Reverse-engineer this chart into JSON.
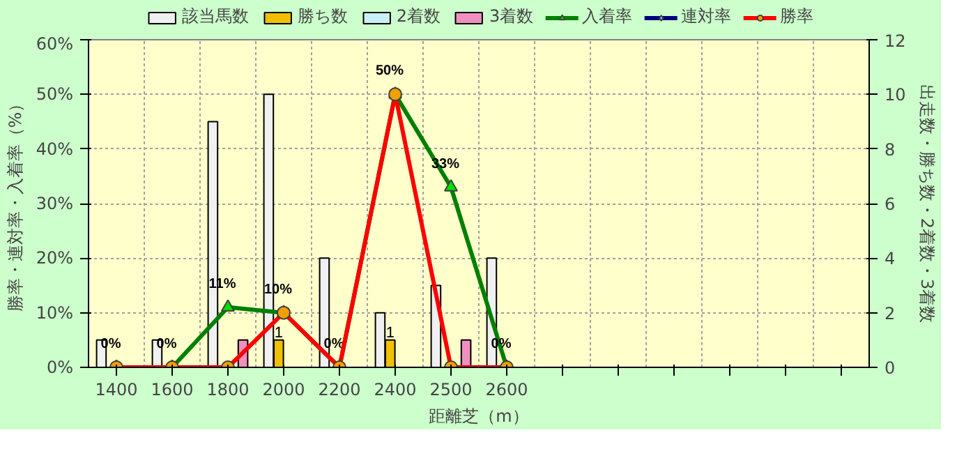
{
  "chart_data": {
    "type": "bar",
    "categories": [
      "1400",
      "1600",
      "1800",
      "2000",
      "2200",
      "2400",
      "2500",
      "2600",
      null,
      null,
      null,
      null,
      null,
      null
    ],
    "xlabel": "距離芝（m）",
    "ylabel": "勝率・連対率・入着率（%）",
    "y2label": "出走数・勝ち数・2着数・3着数",
    "ylim": [
      0,
      60
    ],
    "yticks": [
      {
        "value": 0,
        "label": "0%"
      },
      {
        "value": 10,
        "label": "10%"
      },
      {
        "value": 20,
        "label": "20%"
      },
      {
        "value": 30,
        "label": "30%"
      },
      {
        "value": 40,
        "label": "40%"
      },
      {
        "value": 50,
        "label": "50%"
      },
      {
        "value": 60,
        "label": "60%"
      }
    ],
    "y2lim": [
      0,
      12
    ],
    "y2ticks": [
      0,
      2,
      4,
      6,
      8,
      10,
      12
    ],
    "grid": true,
    "legend": "top",
    "series": [
      {
        "name": "該当馬数",
        "axis": "y2",
        "color": "#f0f0f0",
        "values": [
          1,
          1,
          9,
          10,
          4,
          2,
          3,
          4,
          null,
          null,
          null,
          null,
          null,
          null
        ]
      },
      {
        "name": "勝ち数",
        "axis": "y2",
        "color": "#f0c000",
        "values": [
          0,
          0,
          0,
          1,
          0,
          1,
          0,
          0,
          null,
          null,
          null,
          null,
          null,
          null
        ],
        "value_labels": [
          null,
          null,
          null,
          "1",
          null,
          "1",
          null,
          null,
          null,
          null,
          null,
          null,
          null,
          null
        ]
      },
      {
        "name": "2着数",
        "axis": "y2",
        "color": "#c8f0f8",
        "values": [
          0,
          0,
          0,
          0,
          0,
          0,
          0,
          0,
          null,
          null,
          null,
          null,
          null,
          null
        ]
      },
      {
        "name": "3着数",
        "axis": "y2",
        "color": "#f090c0",
        "values": [
          0,
          0,
          1,
          0,
          0,
          0,
          1,
          0,
          null,
          null,
          null,
          null,
          null,
          null
        ]
      },
      {
        "name": "入着率",
        "type": "line",
        "color": "#008000",
        "marker": "triangle",
        "values": [
          0,
          0,
          11,
          10,
          0,
          50,
          33,
          0,
          null,
          null,
          null,
          null,
          null,
          null
        ],
        "value_labels": [
          "0%",
          "0%",
          "11%",
          "10%",
          "0%",
          "50%",
          "33%",
          "0%",
          null,
          null,
          null,
          null,
          null,
          null
        ]
      },
      {
        "name": "連対率",
        "type": "line",
        "color": "#000080",
        "marker": "diamond",
        "values": [
          null,
          null,
          null,
          null,
          null,
          null,
          null,
          null,
          null,
          null,
          null,
          null,
          null,
          null
        ]
      },
      {
        "name": "勝率",
        "type": "line",
        "color": "#ff0000",
        "marker": "circle",
        "values": [
          0,
          0,
          0,
          10,
          0,
          50,
          0,
          0,
          null,
          null,
          null,
          null,
          null,
          null
        ]
      }
    ]
  }
}
